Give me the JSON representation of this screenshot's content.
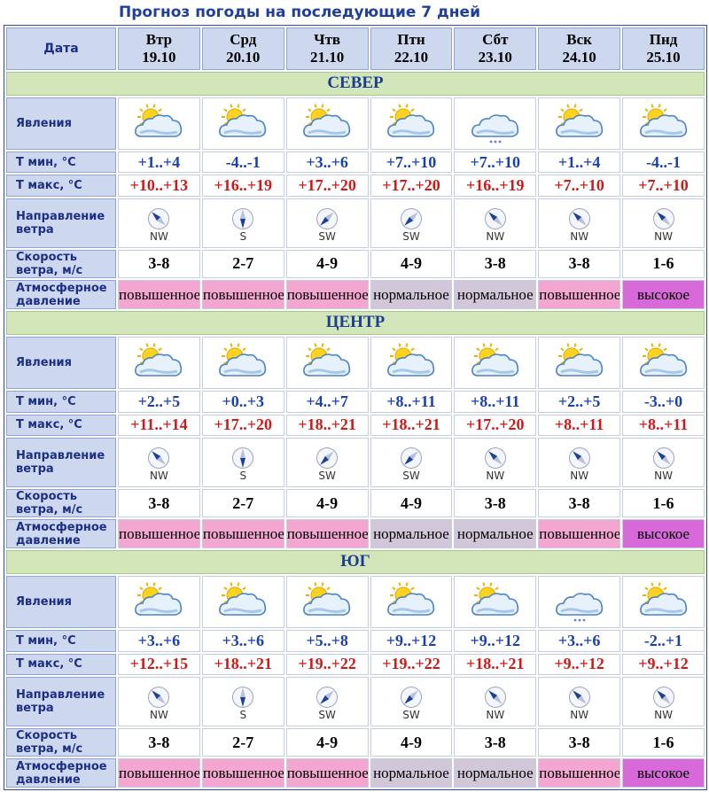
{
  "title": "Прогноз погоды на последующие 7 дней",
  "header": {
    "date_label": "Дата",
    "days": [
      {
        "day": "Втр",
        "date": "19.10"
      },
      {
        "day": "Срд",
        "date": "20.10"
      },
      {
        "day": "Чтв",
        "date": "21.10"
      },
      {
        "day": "Птн",
        "date": "22.10"
      },
      {
        "day": "Сбт",
        "date": "23.10"
      },
      {
        "day": "Вск",
        "date": "24.10"
      },
      {
        "day": "Пнд",
        "date": "25.10"
      }
    ]
  },
  "labels": {
    "phenomena": "Явления",
    "tmin": "Т мин, °С",
    "tmax": "Т макс, °С",
    "wind_dir_1": "Направление",
    "wind_dir_2": "ветра",
    "wind_speed_1": "Скорость",
    "wind_speed_2": "ветра, м/с",
    "pressure_1": "Атмосферное",
    "pressure_2": "давление"
  },
  "pressure_colors": {
    "повышенное": "#f3a6cf",
    "нормальное": "#d2c7d9",
    "высокое": "#d76ad8"
  },
  "weather_icons": {
    "partly-cloudy": "sun-behind-cloud-icon",
    "cloudy-light-snow": "cloud-with-dots-icon"
  },
  "regions": [
    {
      "name": "СЕВЕР",
      "icons": [
        "partly-cloudy",
        "partly-cloudy",
        "partly-cloudy",
        "partly-cloudy",
        "cloudy-light-snow",
        "partly-cloudy",
        "partly-cloudy"
      ],
      "tmin": [
        "+1..+4",
        "-4..-1",
        "+3..+6",
        "+7..+10",
        "+7..+10",
        "+1..+4",
        "-4..-1"
      ],
      "tmax": [
        "+10..+13",
        "+16..+19",
        "+17..+20",
        "+17..+20",
        "+16..+19",
        "+7..+10",
        "+7..+10"
      ],
      "wind_dir": [
        "NW",
        "S",
        "SW",
        "SW",
        "NW",
        "NW",
        "NW"
      ],
      "wind_speed": [
        "3-8",
        "2-7",
        "4-9",
        "4-9",
        "3-8",
        "3-8",
        "1-6"
      ],
      "pressure": [
        "повышенное",
        "повышенное",
        "повышенное",
        "нормальное",
        "нормальное",
        "повышенное",
        "высокое"
      ]
    },
    {
      "name": "ЦЕНТР",
      "icons": [
        "partly-cloudy",
        "partly-cloudy",
        "partly-cloudy",
        "partly-cloudy",
        "partly-cloudy",
        "partly-cloudy",
        "partly-cloudy"
      ],
      "tmin": [
        "+2..+5",
        "+0..+3",
        "+4..+7",
        "+8..+11",
        "+8..+11",
        "+2..+5",
        "-3..+0"
      ],
      "tmax": [
        "+11..+14",
        "+17..+20",
        "+18..+21",
        "+18..+21",
        "+17..+20",
        "+8..+11",
        "+8..+11"
      ],
      "wind_dir": [
        "NW",
        "S",
        "SW",
        "SW",
        "NW",
        "NW",
        "NW"
      ],
      "wind_speed": [
        "3-8",
        "2-7",
        "4-9",
        "4-9",
        "3-8",
        "3-8",
        "1-6"
      ],
      "pressure": [
        "повышенное",
        "повышенное",
        "повышенное",
        "нормальное",
        "нормальное",
        "повышенное",
        "высокое"
      ]
    },
    {
      "name": "ЮГ",
      "icons": [
        "partly-cloudy",
        "partly-cloudy",
        "partly-cloudy",
        "partly-cloudy",
        "partly-cloudy",
        "cloudy-light-snow",
        "partly-cloudy"
      ],
      "tmin": [
        "+3..+6",
        "+3..+6",
        "+5..+8",
        "+9..+12",
        "+9..+12",
        "+3..+6",
        "-2..+1"
      ],
      "tmax": [
        "+12..+15",
        "+18..+21",
        "+19..+22",
        "+19..+22",
        "+18..+21",
        "+9..+12",
        "+9..+12"
      ],
      "wind_dir": [
        "NW",
        "S",
        "SW",
        "SW",
        "NW",
        "NW",
        "NW"
      ],
      "wind_speed": [
        "3-8",
        "2-7",
        "4-9",
        "4-9",
        "3-8",
        "3-8",
        "1-6"
      ],
      "pressure": [
        "повышенное",
        "повышенное",
        "повышенное",
        "нормальное",
        "нормальное",
        "повышенное",
        "высокое"
      ]
    }
  ]
}
